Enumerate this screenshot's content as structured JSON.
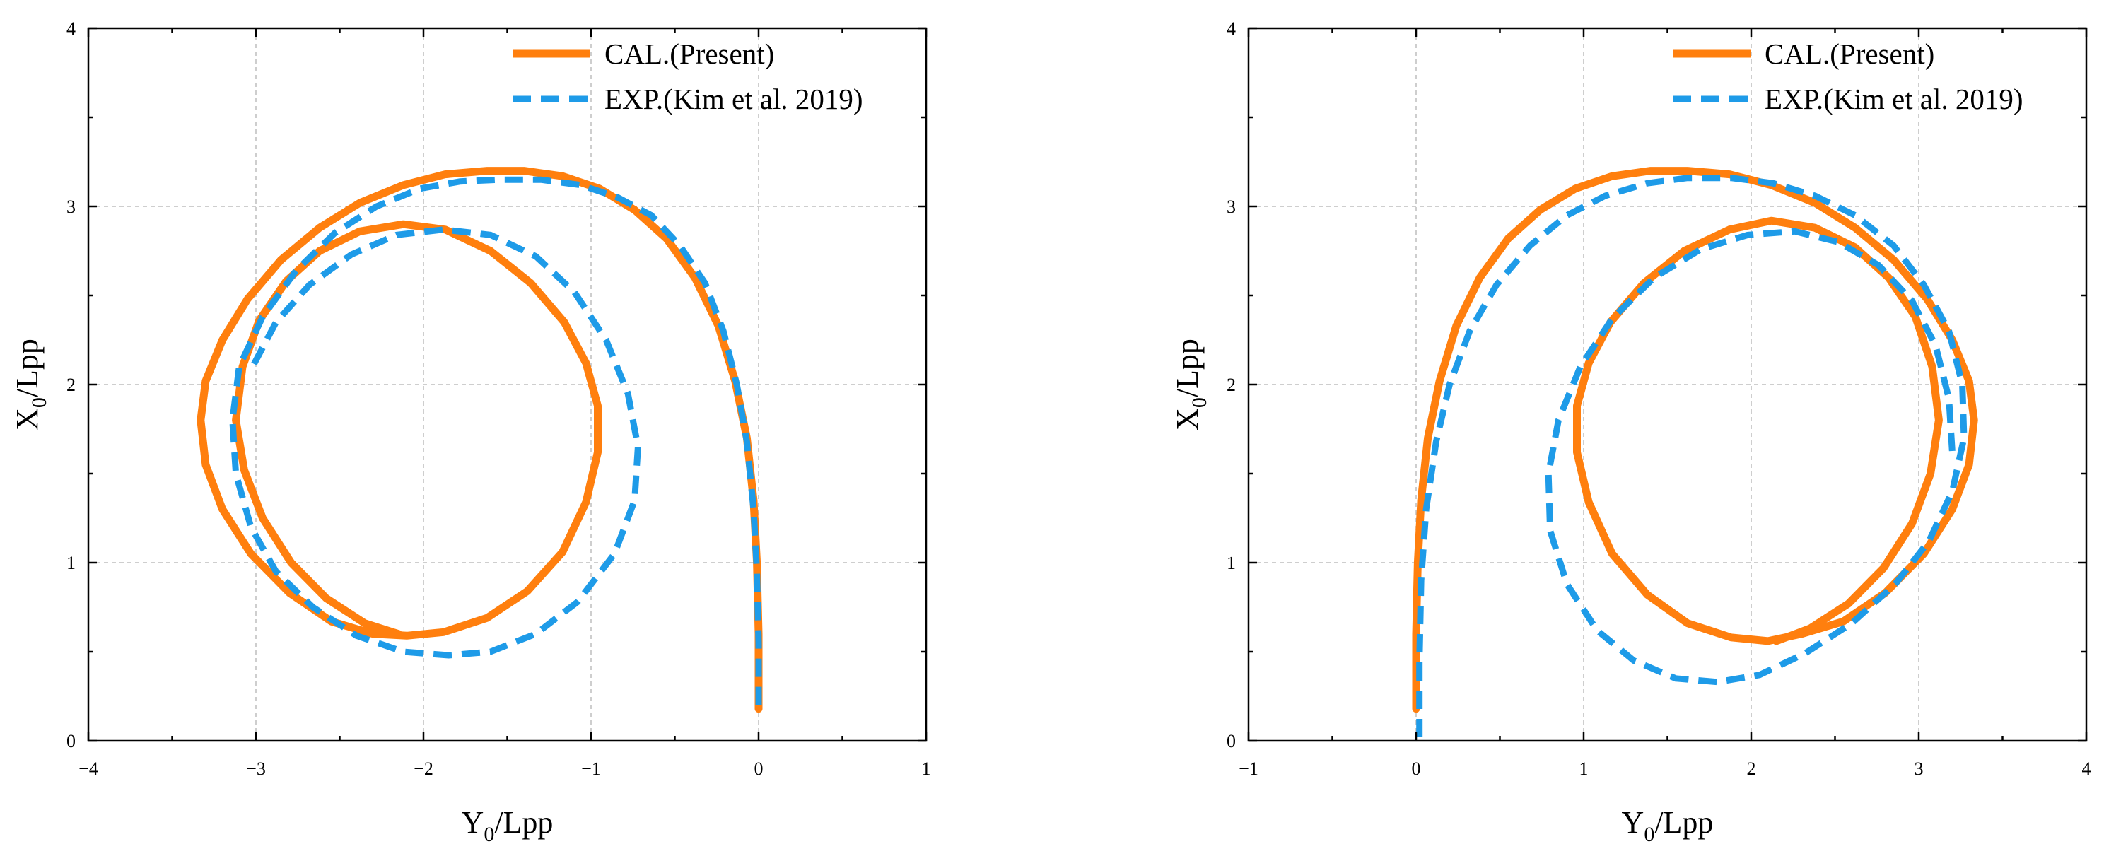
{
  "chart_data": [
    {
      "type": "line",
      "panel": "left",
      "xlabel_main": "Y",
      "xlabel_sub": "0",
      "xlabel_rest": "/Lpp",
      "ylabel_main": "X",
      "ylabel_sub": "0",
      "ylabel_rest": "/Lpp",
      "xlim": [
        -4,
        1
      ],
      "ylim": [
        0,
        4
      ],
      "xticks": [
        -4,
        -3,
        -2,
        -1,
        0,
        1
      ],
      "yticks": [
        0,
        1,
        2,
        3,
        4
      ],
      "grid": true,
      "legend_position": "top-right",
      "series": [
        {
          "name": "CAL.(Present)",
          "style": "solid",
          "color": "#ff7f0e",
          "x": [
            0.0,
            0.0,
            -0.01,
            -0.03,
            -0.07,
            -0.14,
            -0.24,
            -0.38,
            -0.55,
            -0.74,
            -0.95,
            -1.17,
            -1.4,
            -1.62,
            -1.87,
            -2.12,
            -2.38,
            -2.62,
            -2.85,
            -3.05,
            -3.2,
            -3.3,
            -3.33,
            -3.3,
            -3.2,
            -3.03,
            -2.8,
            -2.55,
            -2.3,
            -2.1,
            -1.88,
            -1.62,
            -1.38,
            -1.17,
            -1.03,
            -0.96,
            -0.96,
            -1.03,
            -1.16,
            -1.36,
            -1.6,
            -1.87,
            -2.12,
            -2.38,
            -2.62,
            -2.82,
            -2.98,
            -3.08,
            -3.12,
            -3.07,
            -2.96,
            -2.79,
            -2.58,
            -2.35,
            -2.15
          ],
          "y": [
            0.18,
            0.6,
            1.0,
            1.35,
            1.7,
            2.02,
            2.33,
            2.6,
            2.82,
            2.98,
            3.1,
            3.17,
            3.2,
            3.2,
            3.18,
            3.12,
            3.02,
            2.88,
            2.7,
            2.48,
            2.25,
            2.02,
            1.8,
            1.55,
            1.3,
            1.05,
            0.83,
            0.67,
            0.6,
            0.59,
            0.61,
            0.69,
            0.84,
            1.06,
            1.34,
            1.62,
            1.88,
            2.12,
            2.35,
            2.57,
            2.75,
            2.87,
            2.9,
            2.86,
            2.75,
            2.58,
            2.36,
            2.1,
            1.8,
            1.52,
            1.25,
            1.0,
            0.8,
            0.66,
            0.6
          ]
        },
        {
          "name": "EXP.(Kim et al. 2019)",
          "style": "dashed",
          "color": "#1e9be8",
          "x": [
            0.0,
            0.0,
            -0.01,
            -0.03,
            -0.07,
            -0.13,
            -0.21,
            -0.32,
            -0.47,
            -0.64,
            -0.84,
            -1.06,
            -1.3,
            -1.55,
            -1.78,
            -2.02,
            -2.28,
            -2.53,
            -2.76,
            -2.96,
            -3.1,
            -3.14,
            -3.12,
            -3.03,
            -2.88,
            -2.66,
            -2.4,
            -2.12,
            -1.85,
            -1.6,
            -1.33,
            -1.08,
            -0.86,
            -0.74,
            -0.72,
            -0.78,
            -0.91,
            -1.1,
            -1.33,
            -1.6,
            -1.88,
            -2.16,
            -2.43,
            -2.68,
            -2.88,
            -3.02
          ],
          "y": [
            0.2,
            0.55,
            0.95,
            1.3,
            1.68,
            2.0,
            2.3,
            2.57,
            2.78,
            2.95,
            3.05,
            3.12,
            3.15,
            3.15,
            3.14,
            3.1,
            3.0,
            2.85,
            2.64,
            2.38,
            2.1,
            1.8,
            1.5,
            1.2,
            0.95,
            0.75,
            0.59,
            0.5,
            0.48,
            0.5,
            0.6,
            0.78,
            1.05,
            1.35,
            1.65,
            1.95,
            2.25,
            2.52,
            2.72,
            2.84,
            2.87,
            2.84,
            2.73,
            2.56,
            2.35,
            2.1
          ]
        }
      ]
    },
    {
      "type": "line",
      "panel": "right",
      "xlabel_main": "Y",
      "xlabel_sub": "0",
      "xlabel_rest": "/Lpp",
      "ylabel_main": "X",
      "ylabel_sub": "0",
      "ylabel_rest": "/Lpp",
      "xlim": [
        -1,
        4
      ],
      "ylim": [
        0,
        4
      ],
      "xticks": [
        -1,
        0,
        1,
        2,
        3,
        4
      ],
      "yticks": [
        0,
        1,
        2,
        3,
        4
      ],
      "grid": true,
      "legend_position": "top-right",
      "series": [
        {
          "name": "CAL.(Present)",
          "style": "solid",
          "color": "#ff7f0e",
          "x": [
            0.0,
            0.0,
            0.01,
            0.03,
            0.07,
            0.14,
            0.24,
            0.38,
            0.55,
            0.74,
            0.95,
            1.17,
            1.4,
            1.62,
            1.87,
            2.12,
            2.38,
            2.62,
            2.85,
            3.05,
            3.2,
            3.3,
            3.33,
            3.3,
            3.2,
            3.03,
            2.8,
            2.55,
            2.3,
            2.1,
            1.88,
            1.62,
            1.38,
            1.17,
            1.03,
            0.96,
            0.96,
            1.03,
            1.16,
            1.36,
            1.6,
            1.87,
            2.12,
            2.38,
            2.62,
            2.82,
            2.98,
            3.08,
            3.12,
            3.07,
            2.96,
            2.79,
            2.58,
            2.35,
            2.15
          ],
          "y": [
            0.18,
            0.6,
            1.0,
            1.35,
            1.7,
            2.02,
            2.33,
            2.6,
            2.82,
            2.98,
            3.1,
            3.17,
            3.2,
            3.2,
            3.18,
            3.12,
            3.02,
            2.88,
            2.7,
            2.48,
            2.25,
            2.02,
            1.8,
            1.55,
            1.3,
            1.05,
            0.83,
            0.67,
            0.6,
            0.56,
            0.58,
            0.66,
            0.82,
            1.05,
            1.34,
            1.62,
            1.88,
            2.12,
            2.35,
            2.57,
            2.75,
            2.87,
            2.92,
            2.88,
            2.77,
            2.6,
            2.38,
            2.1,
            1.8,
            1.5,
            1.22,
            0.97,
            0.77,
            0.63,
            0.56
          ]
        },
        {
          "name": "EXP.(Kim et al. 2019)",
          "style": "dashed",
          "color": "#1e9be8",
          "x": [
            0.02,
            0.02,
            0.03,
            0.06,
            0.12,
            0.2,
            0.32,
            0.48,
            0.68,
            0.9,
            1.13,
            1.38,
            1.62,
            1.88,
            2.13,
            2.38,
            2.62,
            2.85,
            3.03,
            3.18,
            3.26,
            3.27,
            3.2,
            3.06,
            2.86,
            2.6,
            2.32,
            2.05,
            1.8,
            1.55,
            1.3,
            1.08,
            0.9,
            0.8,
            0.79,
            0.85,
            0.98,
            1.17,
            1.42,
            1.7,
            1.98,
            2.26,
            2.52,
            2.76,
            2.96,
            3.1,
            3.18,
            3.2
          ],
          "y": [
            0.02,
            0.45,
            0.9,
            1.3,
            1.68,
            2.0,
            2.3,
            2.56,
            2.78,
            2.95,
            3.06,
            3.13,
            3.16,
            3.16,
            3.13,
            3.06,
            2.95,
            2.78,
            2.56,
            2.3,
            2.0,
            1.7,
            1.4,
            1.12,
            0.88,
            0.66,
            0.49,
            0.37,
            0.33,
            0.35,
            0.45,
            0.62,
            0.88,
            1.18,
            1.5,
            1.8,
            2.1,
            2.37,
            2.6,
            2.76,
            2.84,
            2.86,
            2.8,
            2.67,
            2.47,
            2.22,
            1.92,
            1.62
          ]
        }
      ]
    }
  ]
}
